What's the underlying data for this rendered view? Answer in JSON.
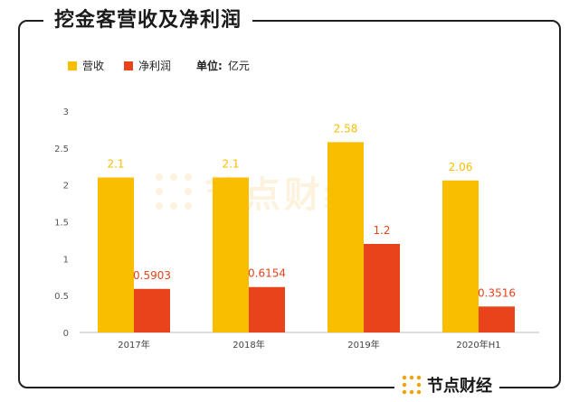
{
  "title": "挖金客营收及净利润",
  "legend": {
    "unit_label": "单位:",
    "unit_value": "亿元"
  },
  "brand": "节点财经",
  "colors": {
    "revenue": "#F9BE00",
    "net_profit": "#E8431A",
    "watermark": "#F0A000"
  },
  "chart_data": {
    "type": "bar",
    "categories": [
      "2017年",
      "2018年",
      "2019年",
      "2020年H1"
    ],
    "series": [
      {
        "name": "营收",
        "values": [
          2.1,
          2.1,
          2.58,
          2.06
        ],
        "labels": [
          "2.1",
          "2.1",
          "2.58",
          "2.06"
        ]
      },
      {
        "name": "净利润",
        "values": [
          0.5903,
          0.6154,
          1.2,
          0.3516
        ],
        "labels": [
          "0.5903",
          "0.6154",
          "1.2",
          "0.3516"
        ]
      }
    ],
    "ylim": [
      0,
      3
    ],
    "yticks": [
      "0",
      "0.5",
      "1",
      "1.5",
      "2",
      "2.5",
      "3"
    ],
    "grid": false,
    "legend_position": "top-left"
  }
}
